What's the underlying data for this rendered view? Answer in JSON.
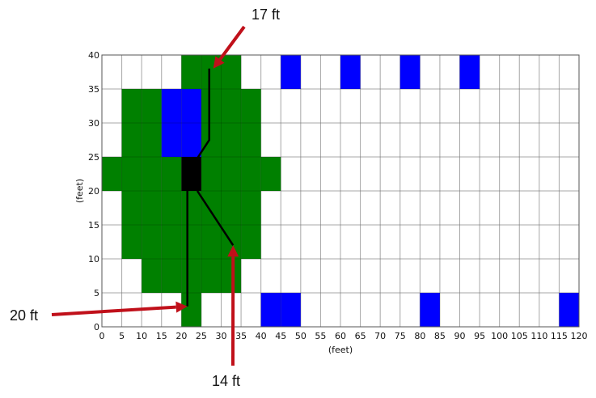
{
  "chart_data": {
    "type": "heatmap",
    "title": "",
    "xlabel": "(feet)",
    "ylabel": "(feet)",
    "xlim": [
      0,
      120
    ],
    "ylim": [
      0,
      40
    ],
    "cell_size": 5,
    "grid": true,
    "x_ticks": [
      0,
      5,
      10,
      15,
      20,
      25,
      30,
      35,
      40,
      45,
      50,
      55,
      60,
      65,
      70,
      75,
      80,
      85,
      90,
      95,
      100,
      105,
      110,
      115,
      120
    ],
    "y_ticks": [
      0,
      5,
      10,
      15,
      20,
      25,
      30,
      35,
      40
    ],
    "colors": {
      "green": "#008000",
      "blue": "#0000ff",
      "black": "#000000",
      "grid": "#cccccc",
      "arrow": "#c0101a"
    },
    "cells": {
      "green": [
        [
          20,
          0
        ],
        [
          10,
          5
        ],
        [
          15,
          5
        ],
        [
          20,
          5
        ],
        [
          25,
          5
        ],
        [
          30,
          5
        ],
        [
          5,
          10
        ],
        [
          10,
          10
        ],
        [
          15,
          10
        ],
        [
          20,
          10
        ],
        [
          25,
          10
        ],
        [
          30,
          10
        ],
        [
          35,
          10
        ],
        [
          5,
          15
        ],
        [
          10,
          15
        ],
        [
          15,
          15
        ],
        [
          20,
          15
        ],
        [
          25,
          15
        ],
        [
          30,
          15
        ],
        [
          35,
          15
        ],
        [
          5,
          20
        ],
        [
          10,
          20
        ],
        [
          15,
          20
        ],
        [
          25,
          20
        ],
        [
          30,
          20
        ],
        [
          35,
          20
        ],
        [
          0,
          20
        ],
        [
          0,
          20
        ],
        [
          40,
          20
        ],
        [
          0,
          20
        ],
        [
          5,
          20
        ],
        [
          10,
          20
        ],
        [
          15,
          20
        ],
        [
          25,
          20
        ],
        [
          30,
          20
        ],
        [
          35,
          20
        ],
        [
          40,
          20
        ],
        [
          5,
          25
        ],
        [
          10,
          25
        ],
        [
          25,
          25
        ],
        [
          30,
          25
        ],
        [
          35,
          25
        ],
        [
          5,
          30
        ],
        [
          10,
          30
        ],
        [
          25,
          30
        ],
        [
          30,
          30
        ],
        [
          35,
          30
        ],
        [
          20,
          35
        ],
        [
          25,
          35
        ],
        [
          30,
          35
        ]
      ],
      "blue": [
        [
          15,
          25
        ],
        [
          20,
          25
        ],
        [
          15,
          30
        ],
        [
          20,
          30
        ],
        [
          45,
          35
        ],
        [
          60,
          35
        ],
        [
          75,
          35
        ],
        [
          90,
          35
        ],
        [
          40,
          0
        ],
        [
          45,
          0
        ],
        [
          80,
          0
        ],
        [
          115,
          0
        ]
      ],
      "black": [
        [
          20,
          20
        ]
      ]
    },
    "paths": [
      {
        "points": [
          [
            21.5,
            20
          ],
          [
            21.5,
            3
          ]
        ]
      },
      {
        "points": [
          [
            24,
            20
          ],
          [
            33,
            12
          ]
        ]
      },
      {
        "points": [
          [
            24,
            24.8
          ],
          [
            27,
            27.5
          ],
          [
            27,
            38
          ]
        ]
      }
    ],
    "annotations": [
      {
        "text": "17 ft",
        "tip": [
          28,
          38
        ]
      },
      {
        "text": "14 ft",
        "tip": [
          33,
          12
        ]
      },
      {
        "text": "20 ft",
        "tip": [
          21.5,
          3
        ]
      }
    ]
  }
}
